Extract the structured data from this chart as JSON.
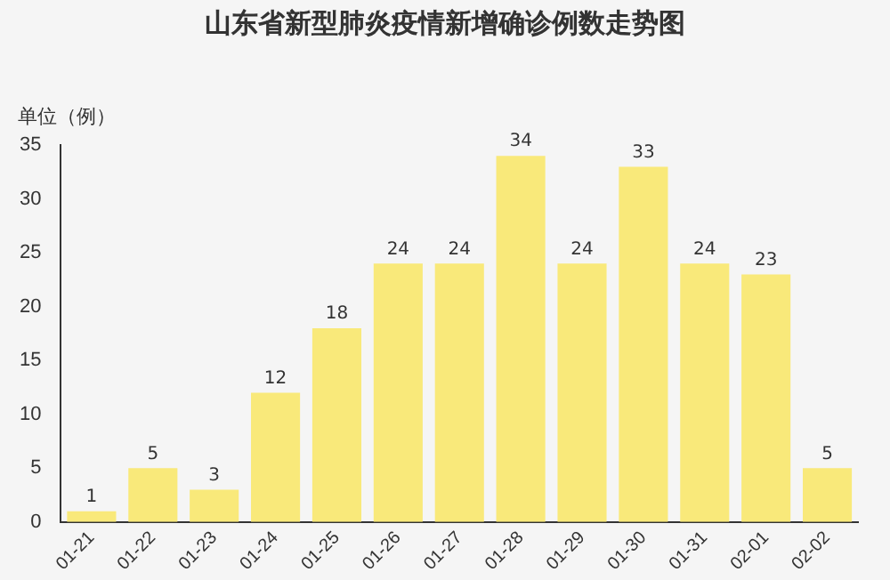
{
  "chart_data": {
    "type": "bar",
    "title": "山东省新型肺炎疫情新增确诊例数走势图",
    "ylabel": "单位（例）",
    "categories": [
      "01-21",
      "01-22",
      "01-23",
      "01-24",
      "01-25",
      "01-26",
      "01-27",
      "01-28",
      "01-29",
      "01-30",
      "01-31",
      "02-01",
      "02-02"
    ],
    "values": [
      1,
      5,
      3,
      12,
      18,
      24,
      24,
      34,
      24,
      33,
      24,
      23,
      5
    ],
    "color": "#f9e97a",
    "ylim": [
      0,
      35
    ],
    "yticks": [
      0,
      5,
      10,
      15,
      20,
      25,
      30,
      35
    ],
    "grid": false,
    "data_labels": true,
    "legend": false
  }
}
